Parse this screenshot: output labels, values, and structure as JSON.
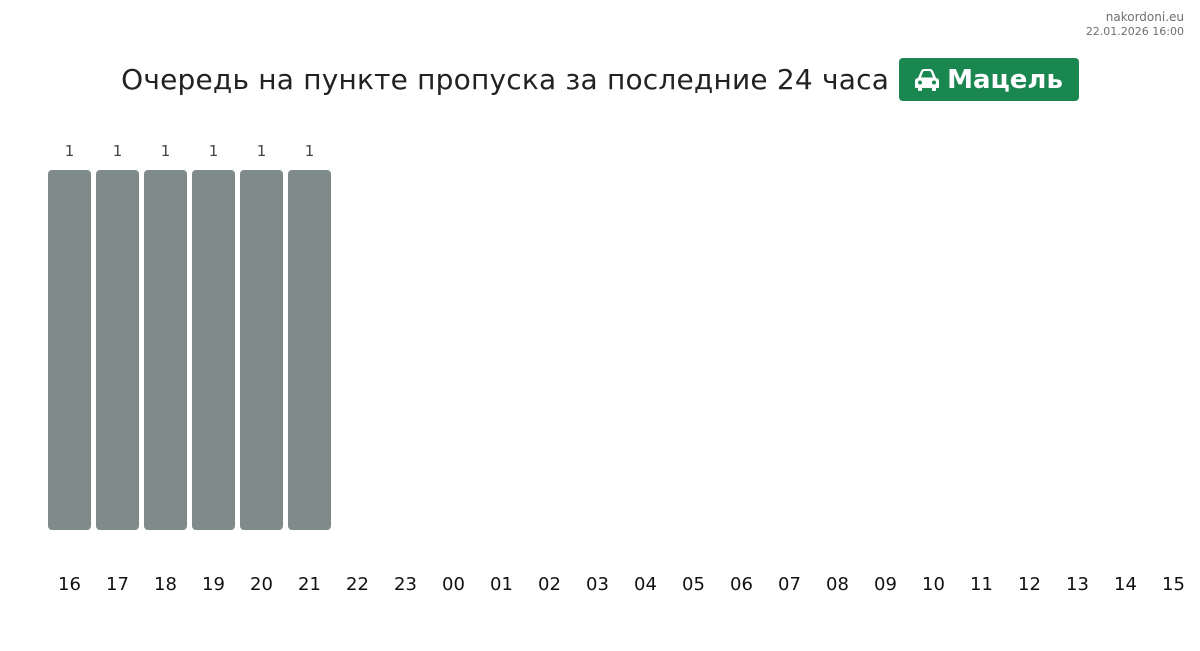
{
  "brand": {
    "site": "nakordoni.eu",
    "timestamp": "22.01.2026 16:00"
  },
  "header": {
    "title": "Очередь на пункте пропуска за последние 24 часа",
    "badge_label": "Мацель",
    "badge_icon": "car-icon",
    "badge_color": "#1a8751"
  },
  "chart_data": {
    "type": "bar",
    "title": "Очередь на пункте пропуска за последние 24 часа",
    "categories": [
      "16",
      "17",
      "18",
      "19",
      "20",
      "21",
      "22",
      "23",
      "00",
      "01",
      "02",
      "03",
      "04",
      "05",
      "06",
      "07",
      "08",
      "09",
      "10",
      "11",
      "12",
      "13",
      "14",
      "15"
    ],
    "values": [
      1,
      1,
      1,
      1,
      1,
      1,
      null,
      null,
      null,
      null,
      null,
      null,
      null,
      null,
      null,
      null,
      null,
      null,
      null,
      null,
      null,
      null,
      null,
      null
    ],
    "ylim": [
      0,
      1
    ],
    "grid": false,
    "bar_color": "#7f8b8b",
    "xlabel": "",
    "ylabel": ""
  }
}
